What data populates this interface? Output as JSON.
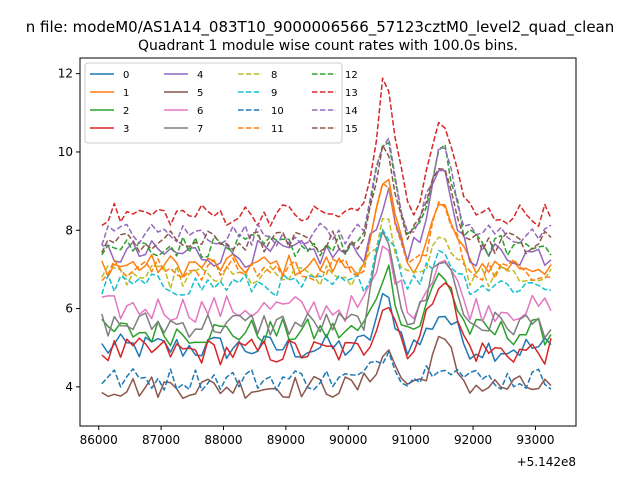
{
  "chart_data": {
    "type": "line",
    "suptitle": "n file: modeM0/AS1A14_083T10_9000006566_57123cztM0_level2_quad_clean",
    "title": "Quadrant 1 module wise count rates with 100.0s bins.",
    "xlabel": "",
    "ylabel": "",
    "x_offset_label": "+5.142e8",
    "xlim": [
      85700,
      93650
    ],
    "ylim": [
      3.0,
      12.4
    ],
    "xticks": [
      86000,
      87000,
      88000,
      89000,
      90000,
      91000,
      92000,
      93000
    ],
    "xtick_labels": [
      "86000",
      "87000",
      "88000",
      "89000",
      "90000",
      "91000",
      "92000",
      "93000"
    ],
    "yticks": [
      4,
      6,
      8,
      10,
      12
    ],
    "ytick_labels": [
      "4",
      "6",
      "8",
      "10",
      "12"
    ],
    "grid": false,
    "legend_position": "top-left",
    "legend_columns": 4,
    "x_start": 86050,
    "x_step": 100,
    "x_count": 73,
    "series": [
      {
        "name": "0",
        "color": "#1f77b4",
        "dash": "solid",
        "base": 5.0,
        "amp1": 1.2,
        "amp2": 0.9,
        "noise": 0.35
      },
      {
        "name": "1",
        "color": "#ff7f0e",
        "dash": "solid",
        "base": 7.1,
        "amp1": 2.0,
        "amp2": 1.5,
        "noise": 0.3
      },
      {
        "name": "2",
        "color": "#2ca02c",
        "dash": "solid",
        "base": 5.4,
        "amp1": 1.6,
        "amp2": 1.5,
        "noise": 0.35
      },
      {
        "name": "3",
        "color": "#d62728",
        "dash": "solid",
        "base": 4.9,
        "amp1": 1.3,
        "amp2": 2.0,
        "noise": 0.35
      },
      {
        "name": "4",
        "color": "#9467bd",
        "dash": "solid",
        "base": 7.4,
        "amp1": 1.4,
        "amp2": 2.0,
        "noise": 0.35
      },
      {
        "name": "5",
        "color": "#8c564b",
        "dash": "solid",
        "base": 4.0,
        "amp1": 0.9,
        "amp2": 1.1,
        "noise": 0.3
      },
      {
        "name": "6",
        "color": "#e377c2",
        "dash": "solid",
        "base": 6.0,
        "amp1": 1.5,
        "amp2": 1.3,
        "noise": 0.35
      },
      {
        "name": "7",
        "color": "#7f7f7f",
        "dash": "solid",
        "base": 5.6,
        "amp1": 2.3,
        "amp2": 1.8,
        "noise": 0.35
      },
      {
        "name": "8",
        "color": "#bcbd22",
        "dash": "dashed",
        "base": 6.8,
        "amp1": 1.4,
        "amp2": 1.1,
        "noise": 0.3
      },
      {
        "name": "9",
        "color": "#17becf",
        "dash": "dashed",
        "base": 6.6,
        "amp1": 1.5,
        "amp2": 0.9,
        "noise": 0.3
      },
      {
        "name": "10",
        "color": "#1f77b4",
        "dash": "dashed",
        "base": 4.2,
        "amp1": 0.7,
        "amp2": 0.5,
        "noise": 0.3
      },
      {
        "name": "11",
        "color": "#ff7f0e",
        "dash": "dashed",
        "base": 7.0,
        "amp1": 2.1,
        "amp2": 1.6,
        "noise": 0.3
      },
      {
        "name": "12",
        "color": "#2ca02c",
        "dash": "dashed",
        "base": 7.6,
        "amp1": 2.8,
        "amp2": 2.6,
        "noise": 0.3
      },
      {
        "name": "13",
        "color": "#d62728",
        "dash": "dashed",
        "base": 8.4,
        "amp1": 3.4,
        "amp2": 2.4,
        "noise": 0.3
      },
      {
        "name": "14",
        "color": "#9467bd",
        "dash": "dashed",
        "base": 7.9,
        "amp1": 2.6,
        "amp2": 2.0,
        "noise": 0.3
      },
      {
        "name": "15",
        "color": "#8c564b",
        "dash": "dashed",
        "base": 7.7,
        "amp1": 2.4,
        "amp2": 2.2,
        "noise": 0.3
      }
    ]
  }
}
